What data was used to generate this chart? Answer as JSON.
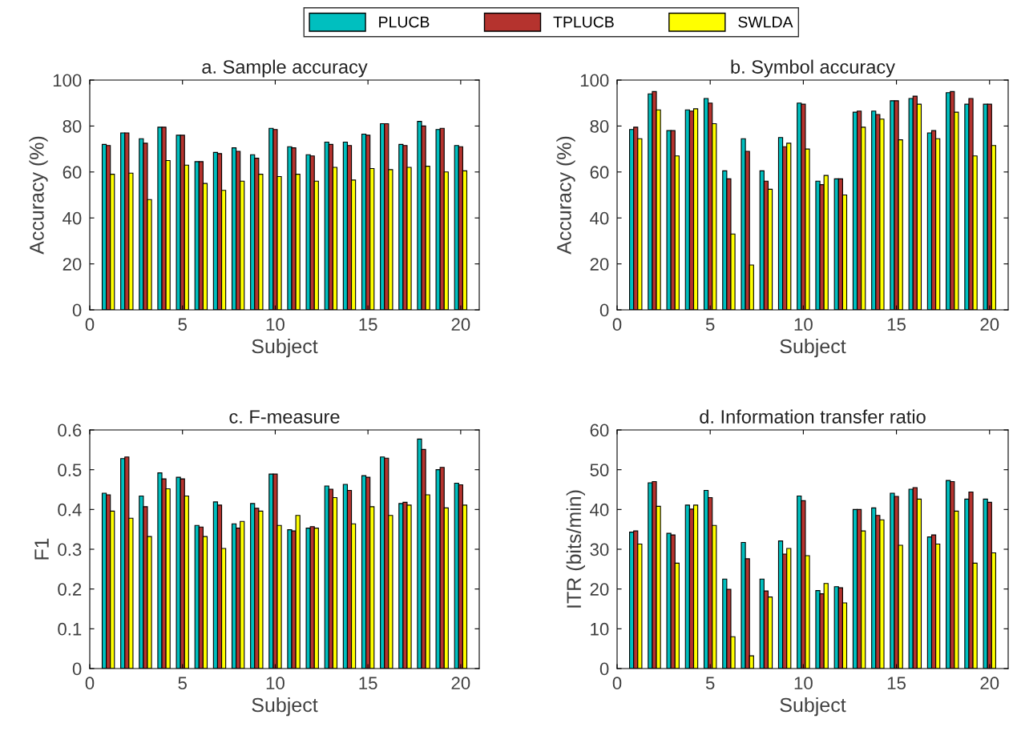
{
  "chart_data": [
    {
      "type": "bar",
      "title": "a. Sample accuracy",
      "xlabel": "Subject",
      "ylabel": "Accuracy (%)",
      "x": [
        1,
        2,
        3,
        4,
        5,
        6,
        7,
        8,
        9,
        10,
        11,
        12,
        13,
        14,
        15,
        16,
        17,
        18,
        19,
        20
      ],
      "xlim": [
        0,
        21
      ],
      "xticks": [
        0,
        5,
        10,
        15,
        20
      ],
      "ylim": [
        0,
        100
      ],
      "yticks": [
        0,
        20,
        40,
        60,
        80,
        100
      ],
      "legend": "top",
      "series": [
        {
          "name": "PLUCB",
          "color": "#00bfbf",
          "values": [
            72,
            77,
            74.5,
            79.5,
            76,
            64.5,
            68.5,
            70.5,
            67.5,
            79,
            71,
            67.5,
            73,
            73,
            76.5,
            81,
            72,
            82,
            78.5,
            71.5
          ]
        },
        {
          "name": "TPLUCB",
          "color": "#b5332e",
          "values": [
            71.5,
            77,
            72.5,
            79.5,
            76,
            64.5,
            68,
            69,
            66,
            78.5,
            70.5,
            67,
            72,
            71.5,
            76,
            81,
            71.5,
            80,
            79,
            71
          ]
        },
        {
          "name": "SWLDA",
          "color": "#ffff00",
          "values": [
            59,
            59.5,
            48,
            65,
            63,
            55,
            52,
            56,
            59,
            58,
            59,
            56,
            62,
            56.5,
            61.5,
            61,
            62,
            62.5,
            60,
            60.5
          ]
        }
      ]
    },
    {
      "type": "bar",
      "title": "b. Symbol accuracy",
      "xlabel": "Subject",
      "ylabel": "Accuracy (%)",
      "x": [
        1,
        2,
        3,
        4,
        5,
        6,
        7,
        8,
        9,
        10,
        11,
        12,
        13,
        14,
        15,
        16,
        17,
        18,
        19,
        20
      ],
      "xlim": [
        0,
        21
      ],
      "xticks": [
        0,
        5,
        10,
        15,
        20
      ],
      "ylim": [
        0,
        100
      ],
      "yticks": [
        0,
        20,
        40,
        60,
        80,
        100
      ],
      "series": [
        {
          "color": "#00bfbf",
          "values": [
            78.5,
            94,
            78,
            87,
            92,
            60.5,
            74.5,
            60.5,
            75,
            90,
            56,
            57,
            86,
            86.5,
            91,
            92,
            77,
            94.5,
            89.5,
            89.5
          ]
        },
        {
          "color": "#b5332e",
          "values": [
            79.5,
            95,
            78,
            86.5,
            90,
            57,
            69,
            56,
            71,
            89.5,
            54.5,
            57,
            86.5,
            85,
            91,
            93,
            78,
            95,
            92,
            89.5
          ]
        },
        {
          "color": "#ffff00",
          "values": [
            74.5,
            87,
            67,
            87.5,
            81,
            33,
            19.5,
            52.5,
            72.5,
            70,
            58.5,
            50,
            79.5,
            83,
            74,
            89.5,
            74.5,
            86,
            67,
            71.5
          ]
        }
      ]
    },
    {
      "type": "bar",
      "title": "c. F-measure",
      "xlabel": "Subject",
      "ylabel": "F1",
      "x": [
        1,
        2,
        3,
        4,
        5,
        6,
        7,
        8,
        9,
        10,
        11,
        12,
        13,
        14,
        15,
        16,
        17,
        18,
        19,
        20
      ],
      "xlim": [
        0,
        21
      ],
      "xticks": [
        0,
        5,
        10,
        15,
        20
      ],
      "ylim": [
        0,
        0.6
      ],
      "yticks": [
        0,
        0.1,
        0.2,
        0.3,
        0.4,
        0.5,
        0.6
      ],
      "series": [
        {
          "color": "#00bfbf",
          "values": [
            0.441,
            0.528,
            0.434,
            0.492,
            0.481,
            0.36,
            0.419,
            0.364,
            0.415,
            0.489,
            0.349,
            0.353,
            0.459,
            0.463,
            0.485,
            0.532,
            0.415,
            0.577,
            0.5,
            0.466
          ]
        },
        {
          "color": "#b5332e",
          "values": [
            0.437,
            0.532,
            0.407,
            0.477,
            0.477,
            0.356,
            0.411,
            0.353,
            0.403,
            0.489,
            0.346,
            0.357,
            0.451,
            0.448,
            0.481,
            0.529,
            0.418,
            0.551,
            0.506,
            0.462
          ]
        },
        {
          "color": "#ffff00",
          "values": [
            0.396,
            0.378,
            0.332,
            0.452,
            0.434,
            0.332,
            0.302,
            0.37,
            0.396,
            0.36,
            0.385,
            0.353,
            0.43,
            0.364,
            0.407,
            0.385,
            0.411,
            0.437,
            0.404,
            0.411
          ]
        }
      ]
    },
    {
      "type": "bar",
      "title": "d. Information transfer ratio",
      "xlabel": "Subject",
      "ylabel": "ITR (bits/min)",
      "x": [
        1,
        2,
        3,
        4,
        5,
        6,
        7,
        8,
        9,
        10,
        11,
        12,
        13,
        14,
        15,
        16,
        17,
        18,
        19,
        20
      ],
      "xlim": [
        0,
        21
      ],
      "xticks": [
        0,
        5,
        10,
        15,
        20
      ],
      "ylim": [
        0,
        60
      ],
      "yticks": [
        0,
        10,
        20,
        30,
        40,
        50,
        60
      ],
      "series": [
        {
          "color": "#00bfbf",
          "values": [
            34.3,
            46.7,
            34,
            41.1,
            44.8,
            22.5,
            31.7,
            22.5,
            32.1,
            43.4,
            19.6,
            20.6,
            40,
            40.4,
            44.1,
            45.1,
            33.1,
            47.3,
            42.6,
            42.6
          ]
        },
        {
          "color": "#b5332e",
          "values": [
            34.6,
            47,
            33.6,
            40.1,
            43,
            19.9,
            27.6,
            19.5,
            28.8,
            42.2,
            18.8,
            20.3,
            40,
            38.5,
            43.3,
            45.5,
            33.6,
            47,
            44.4,
            41.8
          ]
        },
        {
          "color": "#ffff00",
          "values": [
            31.3,
            40.8,
            26.5,
            41.1,
            36,
            8,
            3.2,
            18,
            30.2,
            28.4,
            21.4,
            16.5,
            34.6,
            37.4,
            31,
            42.6,
            31.3,
            39.6,
            26.5,
            29.1
          ]
        }
      ]
    }
  ]
}
